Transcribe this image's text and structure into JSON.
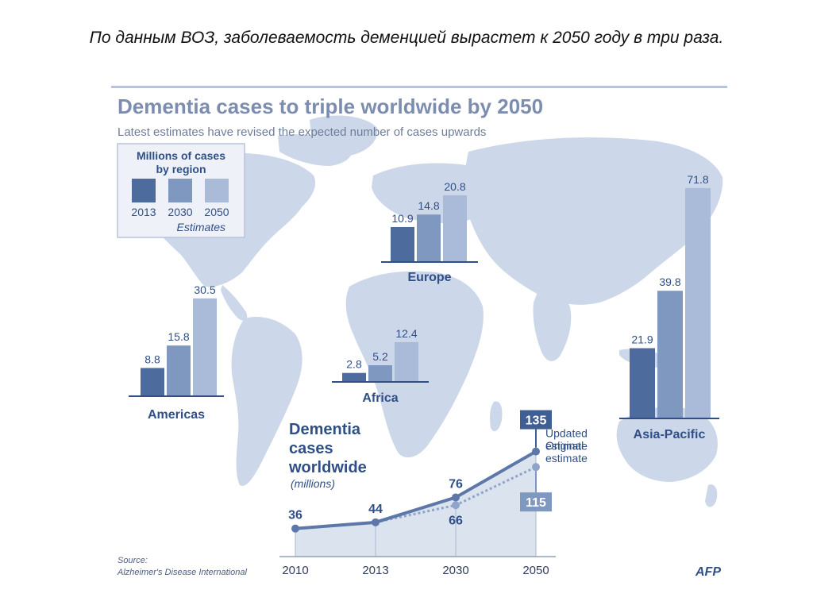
{
  "slide": {
    "title": "По данным ВОЗ, заболеваемость деменцией вырастет к 2050 году в три раза."
  },
  "infographic": {
    "title": "Dementia cases to triple worldwide by 2050",
    "subtitle": "Latest estimates have revised the expected number of cases upwards",
    "source_label": "Source:",
    "source_name": "Alzheimer's Disease International",
    "credit": "AFP"
  },
  "colors": {
    "bar_2013": "#4d6b9c",
    "bar_2030": "#7f98c0",
    "bar_2050": "#a9bbd8",
    "map": "#ccd7e9",
    "title_text": "#7c8db0",
    "label_text": "#2f4f86",
    "line_updated": "#5d77a8",
    "line_original": "#8ea4c8",
    "area_fill": "#dbe3ef"
  },
  "legend": {
    "title_line1": "Millions of cases",
    "title_line2": "by region",
    "years": [
      "2013",
      "2030",
      "2050"
    ],
    "note": "Estimates"
  },
  "chart_data": [
    {
      "type": "bar",
      "title": "Millions of cases by region",
      "categories": [
        "Americas",
        "Europe",
        "Africa",
        "Asia-Pacific"
      ],
      "series": [
        {
          "name": "2013",
          "values": [
            8.8,
            10.9,
            2.8,
            21.9
          ]
        },
        {
          "name": "2030",
          "values": [
            15.8,
            14.8,
            5.2,
            39.8
          ]
        },
        {
          "name": "2050",
          "values": [
            30.5,
            20.8,
            12.4,
            71.8
          ]
        }
      ],
      "value_labels": {
        "Americas": [
          "8.8",
          "15.8",
          "30.5"
        ],
        "Europe": [
          "10.9",
          "14.8",
          "20.8"
        ],
        "Africa": [
          "2.8",
          "5.2",
          "12.4"
        ],
        "Asia-Pacific": [
          "21.9",
          "39.8",
          "71.8"
        ]
      }
    },
    {
      "type": "line",
      "title_lines": [
        "Dementia",
        "cases",
        "worldwide"
      ],
      "unit_label": "(millions)",
      "x": [
        "2010",
        "2013",
        "2030",
        "2050"
      ],
      "series": [
        {
          "name": "Updated estimate",
          "name_lines": [
            "Updated",
            "estimate"
          ],
          "values": [
            36,
            44,
            76,
            135
          ]
        },
        {
          "name": "Original estimate",
          "name_lines": [
            "Original",
            "estimate"
          ],
          "values": [
            36,
            44,
            66,
            115
          ]
        }
      ],
      "point_labels": {
        "updated": [
          "36",
          "44",
          "76",
          "135"
        ],
        "original": [
          "",
          "",
          "66",
          "115"
        ]
      },
      "ylim": [
        0,
        150
      ]
    }
  ]
}
